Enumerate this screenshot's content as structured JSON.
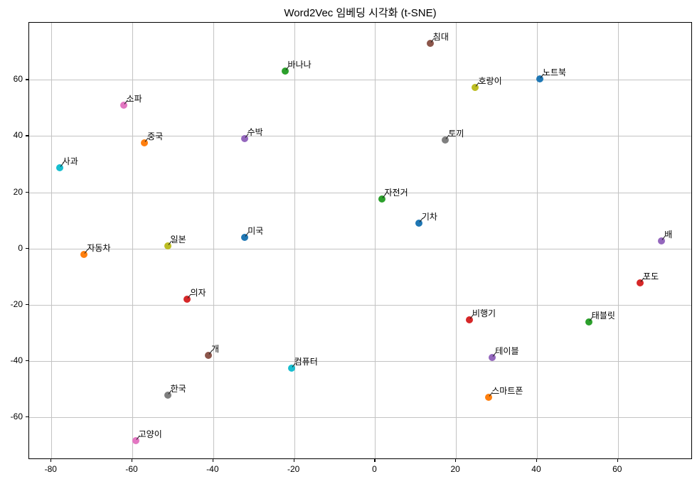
{
  "figure": {
    "background": "#ffffff",
    "text_color": "#000000"
  },
  "chart_data": {
    "type": "scatter",
    "title": "Word2Vec 임베딩 시각화 (t-SNE)",
    "xlabel": "",
    "ylabel": "",
    "xlim": [
      -85.5,
      78.5
    ],
    "ylim": [
      -75.1,
      80.3
    ],
    "x_ticks": [
      -80,
      -60,
      -40,
      -20,
      0,
      20,
      40,
      60
    ],
    "y_ticks": [
      -60,
      -40,
      -20,
      0,
      20,
      40,
      60
    ],
    "grid": true,
    "grid_color": "#c3c3c3",
    "legend": "none",
    "marker_diameter_px": 10,
    "points": [
      {
        "label": "침대",
        "x": 13.6,
        "y": 73.0,
        "color": "#8c564b"
      },
      {
        "label": "바나나",
        "x": -22.3,
        "y": 63.2,
        "color": "#2ca02c"
      },
      {
        "label": "노트북",
        "x": 40.7,
        "y": 60.4,
        "color": "#1f77b4"
      },
      {
        "label": "호랑이",
        "x": 24.8,
        "y": 57.2,
        "color": "#bcbd22"
      },
      {
        "label": "소파",
        "x": -62.2,
        "y": 51.0,
        "color": "#e377c2"
      },
      {
        "label": "수박",
        "x": -32.3,
        "y": 39.0,
        "color": "#9467bd"
      },
      {
        "label": "토끼",
        "x": 17.4,
        "y": 38.5,
        "color": "#7f7f7f"
      },
      {
        "label": "중국",
        "x": -57.0,
        "y": 37.6,
        "color": "#ff7f0e"
      },
      {
        "label": "사과",
        "x": -78.0,
        "y": 28.8,
        "color": "#17becf"
      },
      {
        "label": "자전거",
        "x": 1.6,
        "y": 17.7,
        "color": "#2ca02c"
      },
      {
        "label": "기차",
        "x": 10.8,
        "y": 9.0,
        "color": "#1f77b4"
      },
      {
        "label": "배",
        "x": 70.8,
        "y": 2.8,
        "color": "#9467bd"
      },
      {
        "label": "미국",
        "x": -32.2,
        "y": 3.9,
        "color": "#1f77b4"
      },
      {
        "label": "일본",
        "x": -51.3,
        "y": 0.9,
        "color": "#bcbd22"
      },
      {
        "label": "자동차",
        "x": -71.9,
        "y": -2.1,
        "color": "#ff7f0e"
      },
      {
        "label": "포도",
        "x": 65.5,
        "y": -12.1,
        "color": "#d62728"
      },
      {
        "label": "의자",
        "x": -46.4,
        "y": -17.9,
        "color": "#d62728"
      },
      {
        "label": "비행기",
        "x": 23.3,
        "y": -25.4,
        "color": "#d62728"
      },
      {
        "label": "태블릿",
        "x": 52.8,
        "y": -26.0,
        "color": "#2ca02c"
      },
      {
        "label": "개",
        "x": -41.2,
        "y": -38.0,
        "color": "#8c564b"
      },
      {
        "label": "테이블",
        "x": 29.0,
        "y": -38.6,
        "color": "#9467bd"
      },
      {
        "label": "컴퓨터",
        "x": -20.7,
        "y": -42.4,
        "color": "#17becf"
      },
      {
        "label": "한국",
        "x": -51.3,
        "y": -52.2,
        "color": "#7f7f7f"
      },
      {
        "label": "스마트폰",
        "x": 28.1,
        "y": -52.8,
        "color": "#ff7f0e"
      },
      {
        "label": "고양이",
        "x": -59.2,
        "y": -68.2,
        "color": "#e377c2"
      }
    ]
  }
}
